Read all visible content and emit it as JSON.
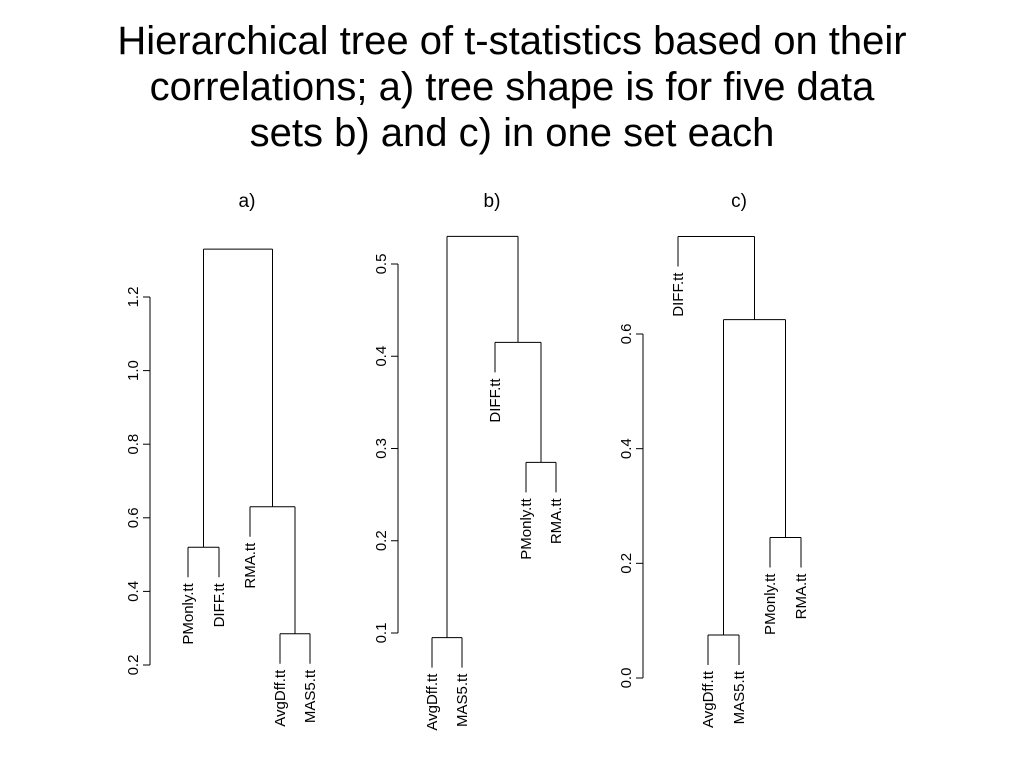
{
  "slide": {
    "title_lines": [
      "Hierarchical tree of t-statistics based on their",
      "correlations; a) tree shape is for five data",
      "sets b) and c) in one set each"
    ]
  },
  "colors": {
    "ink": "#000000",
    "background": "#ffffff"
  },
  "chart_data": [
    {
      "type": "dendrogram",
      "title": "a)",
      "ylabel": "",
      "ylim": [
        0.2,
        1.35
      ],
      "yticks": [
        "0.2",
        "0.4",
        "0.6",
        "0.8",
        "1.0",
        "1.2"
      ],
      "leaves": [
        "PMonly.tt",
        "DIFF.tt",
        "RMA.tt",
        "AvgDff.tt",
        "MAS5.tt"
      ],
      "merges": [
        {
          "left": "AvgDff.tt",
          "right": "MAS5.tt",
          "height": 0.285
        },
        {
          "left": "RMA.tt",
          "right": "AvgDff.tt+MAS5.tt",
          "height": 0.63
        },
        {
          "left": "PMonly.tt",
          "right": "DIFF.tt",
          "height": 0.52
        },
        {
          "left": "PMonly.tt+DIFF.tt",
          "right": "RMA.tt+AvgDff.tt+MAS5.tt",
          "height": 1.33
        }
      ]
    },
    {
      "type": "dendrogram",
      "title": "b)",
      "ylabel": "",
      "ylim": [
        0.08,
        0.53
      ],
      "yticks": [
        "0.1",
        "0.2",
        "0.3",
        "0.4",
        "0.5"
      ],
      "leaves": [
        "AvgDff.tt",
        "MAS5.tt",
        "DIFF.tt",
        "PMonly.tt",
        "RMA.tt"
      ],
      "merges": [
        {
          "left": "AvgDff.tt",
          "right": "MAS5.tt",
          "height": 0.095
        },
        {
          "left": "PMonly.tt",
          "right": "RMA.tt",
          "height": 0.285
        },
        {
          "left": "DIFF.tt",
          "right": "PMonly.tt+RMA.tt",
          "height": 0.415
        },
        {
          "left": "AvgDff.tt+MAS5.tt",
          "right": "DIFF.tt+PMonly.tt+RMA.tt",
          "height": 0.53
        }
      ]
    },
    {
      "type": "dendrogram",
      "title": "c)",
      "ylabel": "",
      "ylim": [
        0.0,
        0.77
      ],
      "yticks": [
        "0.0",
        "0.2",
        "0.4",
        "0.6"
      ],
      "leaves": [
        "DIFF.tt",
        "AvgDff.tt",
        "MAS5.tt",
        "PMonly.tt",
        "RMA.tt"
      ],
      "merges": [
        {
          "left": "AvgDff.tt",
          "right": "MAS5.tt",
          "height": 0.075
        },
        {
          "left": "PMonly.tt",
          "right": "RMA.tt",
          "height": 0.245
        },
        {
          "left": "AvgDff.tt+MAS5.tt",
          "right": "PMonly.tt+RMA.tt",
          "height": 0.625
        },
        {
          "left": "DIFF.tt",
          "right": "AvgDff.tt+MAS5.tt+PMonly.tt+RMA.tt",
          "height": 0.77
        }
      ]
    }
  ]
}
